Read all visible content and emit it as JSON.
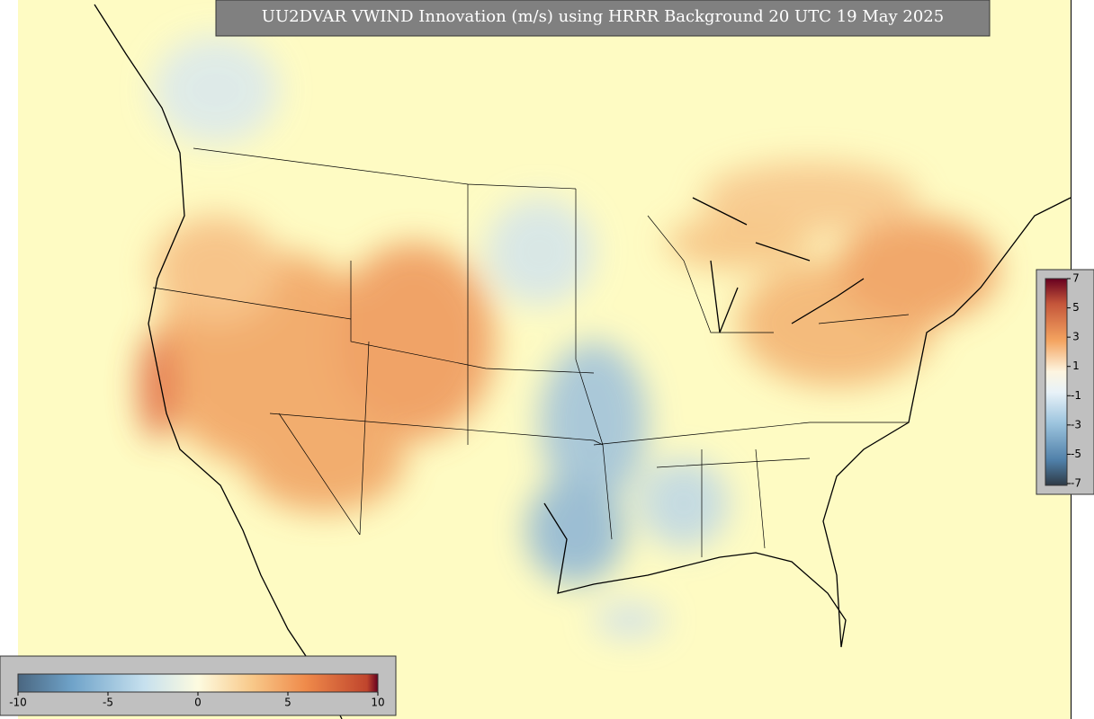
{
  "title": "UU2DVAR VWIND Innovation (m/s) using HRRR Background 20 UTC 19 May 2025",
  "colorbar_right": {
    "ticks": [
      7,
      5,
      3,
      1,
      -1,
      -3,
      -5,
      -7
    ]
  },
  "colorbar_bottom": {
    "ticks": [
      -10,
      -5,
      0,
      5,
      10
    ]
  }
}
